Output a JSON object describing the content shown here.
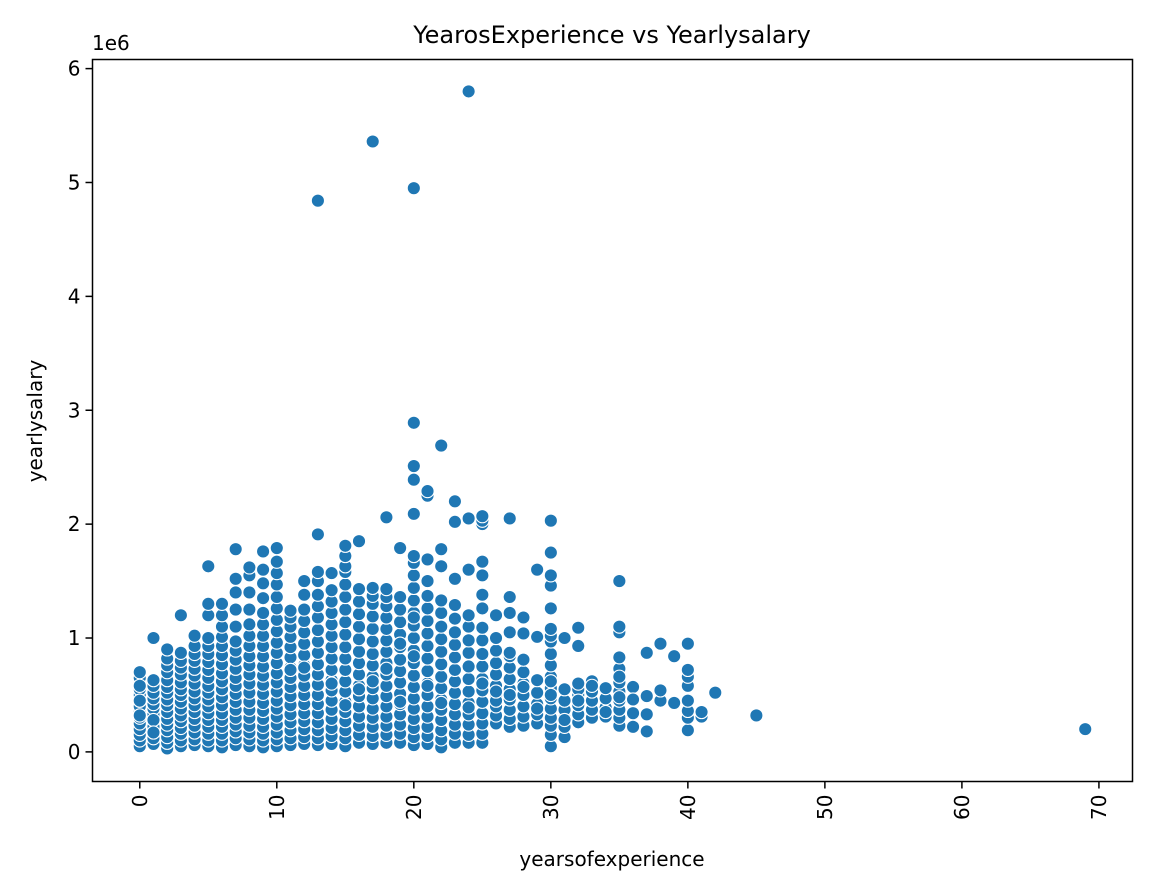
{
  "chart_data": {
    "type": "scatter",
    "title": "YearosExperience vs Yearlysalary",
    "xlabel": "yearsofexperience",
    "ylabel": "yearlysalary",
    "y_multiplier_label": "1e6",
    "xlim": [
      -3.45,
      72.45
    ],
    "ylim": [
      -0.26,
      6.08
    ],
    "x_ticks": [
      0,
      10,
      20,
      30,
      40,
      50,
      60,
      70
    ],
    "y_ticks": [
      0,
      1,
      2,
      3,
      4,
      5,
      6
    ],
    "x_tick_rotation": 90,
    "grid": false,
    "legend": "none",
    "series": [
      {
        "color": "#1f77b4",
        "edge_color": "#ffffff",
        "x": [
          0,
          0,
          0,
          0,
          0,
          0,
          0,
          0,
          0,
          0,
          0,
          0,
          0,
          0,
          0,
          0,
          0,
          1,
          1,
          1,
          1,
          1,
          1,
          1,
          1,
          1,
          1,
          1,
          1,
          1,
          1,
          1,
          2,
          2,
          2,
          2,
          2,
          2,
          2,
          2,
          2,
          2,
          2,
          2,
          2,
          2,
          2,
          2,
          3,
          3,
          3,
          3,
          3,
          3,
          3,
          3,
          3,
          3,
          3,
          3,
          3,
          3,
          3,
          3,
          4,
          4,
          4,
          4,
          4,
          4,
          4,
          4,
          4,
          4,
          4,
          4,
          4,
          4,
          4,
          4,
          5,
          5,
          5,
          5,
          5,
          5,
          5,
          5,
          5,
          5,
          5,
          5,
          5,
          5,
          5,
          5,
          5,
          5,
          5,
          6,
          6,
          6,
          6,
          6,
          6,
          6,
          6,
          6,
          6,
          6,
          6,
          6,
          6,
          6,
          6,
          6,
          6,
          7,
          7,
          7,
          7,
          7,
          7,
          7,
          7,
          7,
          7,
          7,
          7,
          7,
          7,
          7,
          7,
          7,
          7,
          7,
          8,
          8,
          8,
          8,
          8,
          8,
          8,
          8,
          8,
          8,
          8,
          8,
          8,
          8,
          8,
          8,
          8,
          8,
          8,
          9,
          9,
          9,
          9,
          9,
          9,
          9,
          9,
          9,
          9,
          9,
          9,
          9,
          9,
          9,
          9,
          9,
          9,
          9,
          9,
          10,
          10,
          10,
          10,
          10,
          10,
          10,
          10,
          10,
          10,
          10,
          10,
          10,
          10,
          10,
          10,
          10,
          10,
          10,
          10,
          10,
          11,
          11,
          11,
          11,
          11,
          11,
          11,
          11,
          11,
          11,
          11,
          11,
          11,
          11,
          11,
          11,
          11,
          12,
          12,
          12,
          12,
          12,
          12,
          12,
          12,
          12,
          12,
          12,
          12,
          12,
          12,
          12,
          12,
          12,
          12,
          13,
          13,
          13,
          13,
          13,
          13,
          13,
          13,
          13,
          13,
          13,
          13,
          13,
          13,
          13,
          13,
          13,
          13,
          13,
          13,
          14,
          14,
          14,
          14,
          14,
          14,
          14,
          14,
          14,
          14,
          14,
          14,
          14,
          14,
          14,
          14,
          14,
          14,
          15,
          15,
          15,
          15,
          15,
          15,
          15,
          15,
          15,
          15,
          15,
          15,
          15,
          15,
          15,
          15,
          15,
          15,
          15,
          15,
          15,
          16,
          16,
          16,
          16,
          16,
          16,
          16,
          16,
          16,
          16,
          16,
          16,
          16,
          16,
          16,
          16,
          16,
          17,
          17,
          17,
          17,
          17,
          17,
          17,
          17,
          17,
          17,
          17,
          17,
          17,
          17,
          17,
          17,
          17,
          17,
          18,
          18,
          18,
          18,
          18,
          18,
          18,
          18,
          18,
          18,
          18,
          18,
          18,
          18,
          18,
          18,
          18,
          18,
          19,
          19,
          19,
          19,
          19,
          19,
          19,
          19,
          19,
          19,
          19,
          19,
          19,
          19,
          19,
          19,
          19,
          20,
          20,
          20,
          20,
          20,
          20,
          20,
          20,
          20,
          20,
          20,
          20,
          20,
          20,
          20,
          20,
          20,
          20,
          20,
          20,
          20,
          20,
          20,
          20,
          20,
          21,
          21,
          21,
          21,
          21,
          21,
          21,
          21,
          21,
          21,
          21,
          21,
          21,
          21,
          21,
          21,
          21,
          21,
          21,
          22,
          22,
          22,
          22,
          22,
          22,
          22,
          22,
          22,
          22,
          22,
          22,
          22,
          22,
          22,
          22,
          22,
          22,
          23,
          23,
          23,
          23,
          23,
          23,
          23,
          23,
          23,
          23,
          23,
          23,
          23,
          23,
          23,
          23,
          24,
          24,
          24,
          24,
          24,
          24,
          24,
          24,
          24,
          24,
          24,
          24,
          24,
          24,
          24,
          24,
          25,
          25,
          25,
          25,
          25,
          25,
          25,
          25,
          25,
          25,
          25,
          25,
          25,
          25,
          25,
          25,
          25,
          25,
          25,
          26,
          26,
          26,
          26,
          26,
          26,
          26,
          26,
          26,
          26,
          26,
          26,
          27,
          27,
          27,
          27,
          27,
          27,
          27,
          27,
          27,
          27,
          27,
          27,
          27,
          27,
          28,
          28,
          28,
          28,
          28,
          28,
          28,
          28,
          28,
          28,
          29,
          29,
          29,
          29,
          29,
          29,
          29,
          29,
          30,
          30,
          30,
          30,
          30,
          30,
          30,
          30,
          30,
          30,
          30,
          30,
          30,
          30,
          30,
          30,
          30,
          30,
          30,
          30,
          31,
          31,
          31,
          31,
          31,
          31,
          31,
          31,
          32,
          32,
          32,
          32,
          32,
          32,
          32,
          32,
          32,
          33,
          33,
          33,
          33,
          33,
          33,
          34,
          34,
          34,
          34,
          34,
          35,
          35,
          35,
          35,
          35,
          35,
          35,
          35,
          35,
          35,
          35,
          35,
          35,
          36,
          36,
          36,
          36,
          37,
          37,
          37,
          37,
          38,
          38,
          38,
          39,
          39,
          40,
          40,
          40,
          40,
          40,
          40,
          40,
          40,
          41,
          41,
          42,
          45,
          69
        ],
        "y": [
          0.05,
          0.1,
          0.15,
          0.2,
          0.25,
          0.3,
          0.35,
          0.4,
          0.45,
          0.5,
          0.55,
          0.6,
          0.65,
          0.7,
          0.32,
          0.45,
          0.58,
          0.07,
          0.12,
          0.18,
          0.22,
          0.28,
          0.33,
          0.38,
          0.42,
          0.47,
          0.52,
          0.58,
          0.63,
          0.28,
          0.17,
          1.0,
          0.03,
          0.08,
          0.13,
          0.19,
          0.24,
          0.29,
          0.35,
          0.41,
          0.46,
          0.52,
          0.57,
          0.63,
          0.7,
          0.76,
          0.82,
          0.9,
          0.05,
          0.1,
          0.16,
          0.21,
          0.27,
          0.32,
          0.38,
          0.44,
          0.5,
          0.55,
          0.61,
          0.68,
          0.74,
          0.8,
          0.87,
          1.2,
          0.06,
          0.11,
          0.17,
          0.23,
          0.29,
          0.35,
          0.41,
          0.47,
          0.53,
          0.6,
          0.67,
          0.73,
          0.8,
          0.86,
          0.93,
          1.02,
          0.05,
          0.1,
          0.16,
          0.22,
          0.28,
          0.34,
          0.4,
          0.46,
          0.52,
          0.58,
          0.65,
          0.72,
          0.79,
          0.86,
          0.93,
          1.0,
          1.2,
          1.3,
          1.63,
          0.04,
          0.1,
          0.16,
          0.22,
          0.28,
          0.34,
          0.41,
          0.48,
          0.55,
          0.62,
          0.69,
          0.77,
          0.85,
          0.93,
          1.01,
          1.1,
          1.2,
          1.3,
          0.06,
          0.12,
          0.18,
          0.24,
          0.3,
          0.37,
          0.44,
          0.51,
          0.58,
          0.65,
          0.73,
          0.81,
          0.89,
          0.97,
          1.1,
          1.25,
          1.4,
          1.52,
          1.78,
          0.05,
          0.11,
          0.17,
          0.23,
          0.3,
          0.37,
          0.44,
          0.52,
          0.6,
          0.68,
          0.76,
          0.84,
          0.93,
          1.02,
          1.12,
          1.25,
          1.4,
          1.55,
          1.62,
          0.04,
          0.1,
          0.16,
          0.22,
          0.29,
          0.36,
          0.43,
          0.51,
          0.59,
          0.67,
          0.75,
          0.84,
          0.93,
          1.02,
          1.12,
          1.22,
          1.35,
          1.48,
          1.6,
          1.76,
          0.05,
          0.11,
          0.17,
          0.24,
          0.31,
          0.38,
          0.45,
          0.53,
          0.61,
          0.69,
          0.78,
          0.87,
          0.96,
          1.06,
          1.16,
          1.26,
          1.36,
          1.47,
          1.57,
          1.67,
          1.79,
          0.06,
          0.12,
          0.19,
          0.26,
          0.33,
          0.41,
          0.49,
          0.57,
          0.65,
          0.74,
          0.83,
          0.92,
          1.01,
          1.1,
          1.18,
          1.24,
          0.72,
          0.07,
          0.13,
          0.2,
          0.27,
          0.34,
          0.42,
          0.5,
          0.58,
          0.67,
          0.76,
          0.85,
          0.95,
          1.05,
          1.15,
          1.25,
          1.38,
          1.5,
          0.74,
          0.06,
          0.12,
          0.19,
          0.26,
          0.34,
          0.42,
          0.5,
          0.59,
          0.68,
          0.77,
          0.87,
          0.97,
          1.07,
          1.18,
          1.28,
          1.38,
          1.5,
          1.58,
          1.91,
          4.84,
          0.07,
          0.14,
          0.21,
          0.29,
          0.37,
          0.45,
          0.54,
          0.63,
          0.72,
          0.82,
          0.92,
          1.02,
          1.12,
          1.22,
          1.32,
          1.42,
          1.57,
          0.6,
          0.05,
          0.12,
          0.19,
          0.27,
          0.35,
          0.44,
          0.53,
          0.62,
          0.72,
          0.82,
          0.92,
          1.03,
          1.14,
          1.25,
          1.36,
          1.47,
          1.58,
          1.63,
          1.72,
          1.81,
          0.41,
          0.08,
          0.15,
          0.23,
          0.31,
          0.4,
          0.49,
          0.58,
          0.68,
          0.78,
          0.88,
          0.99,
          1.1,
          1.21,
          1.32,
          1.43,
          1.85,
          0.55,
          0.07,
          0.14,
          0.22,
          0.3,
          0.38,
          0.47,
          0.56,
          0.66,
          0.76,
          0.86,
          0.97,
          1.08,
          1.19,
          1.3,
          1.37,
          1.44,
          0.62,
          5.36,
          0.08,
          0.15,
          0.23,
          0.31,
          0.4,
          0.49,
          0.58,
          0.68,
          0.78,
          0.88,
          0.98,
          1.08,
          1.18,
          1.28,
          1.36,
          1.43,
          2.06,
          0.73,
          0.08,
          0.16,
          0.24,
          0.33,
          0.42,
          0.51,
          0.61,
          0.71,
          0.81,
          0.92,
          1.03,
          1.14,
          1.25,
          1.36,
          1.79,
          0.95,
          0.44,
          0.06,
          0.13,
          0.21,
          0.29,
          0.38,
          0.47,
          0.57,
          0.67,
          0.78,
          0.89,
          1.0,
          1.11,
          1.22,
          1.33,
          1.44,
          1.55,
          1.66,
          1.72,
          2.09,
          2.39,
          2.51,
          2.89,
          4.95,
          1.18,
          0.84,
          0.07,
          0.14,
          0.22,
          0.31,
          0.4,
          0.5,
          0.6,
          0.71,
          0.82,
          0.93,
          1.04,
          1.15,
          1.26,
          1.37,
          1.5,
          1.69,
          2.25,
          2.29,
          0.58,
          0.04,
          0.11,
          0.19,
          0.28,
          0.37,
          0.46,
          0.56,
          0.66,
          0.77,
          0.88,
          0.99,
          1.1,
          1.22,
          1.33,
          1.63,
          1.78,
          2.69,
          0.43,
          0.08,
          0.16,
          0.24,
          0.33,
          0.42,
          0.52,
          0.62,
          0.72,
          0.83,
          0.94,
          1.05,
          1.17,
          1.29,
          1.52,
          2.02,
          2.2,
          0.08,
          0.15,
          0.24,
          0.33,
          0.43,
          0.53,
          0.64,
          0.75,
          0.87,
          0.98,
          1.1,
          1.2,
          1.6,
          2.05,
          0.39,
          5.8,
          0.08,
          0.16,
          0.25,
          0.34,
          0.44,
          0.54,
          0.64,
          0.75,
          0.86,
          0.98,
          1.09,
          1.26,
          1.38,
          1.55,
          1.67,
          2.0,
          2.03,
          2.07,
          0.6,
          0.25,
          0.32,
          0.4,
          0.49,
          0.58,
          0.68,
          0.78,
          0.89,
          1.0,
          1.2,
          0.45,
          0.53,
          0.22,
          0.29,
          0.37,
          0.46,
          0.55,
          0.64,
          0.74,
          0.84,
          0.87,
          1.05,
          1.22,
          1.36,
          2.05,
          0.5,
          0.23,
          0.31,
          0.4,
          0.5,
          0.6,
          0.7,
          0.81,
          1.04,
          1.18,
          0.57,
          0.25,
          0.33,
          0.42,
          0.52,
          0.63,
          1.01,
          1.6,
          0.38,
          0.05,
          0.15,
          0.23,
          0.3,
          0.38,
          0.47,
          0.56,
          0.66,
          0.76,
          0.86,
          0.97,
          1.02,
          1.08,
          1.26,
          1.46,
          1.55,
          1.75,
          2.03,
          0.62,
          0.5,
          0.13,
          0.22,
          0.3,
          0.37,
          0.45,
          0.55,
          1.0,
          0.28,
          0.26,
          0.33,
          0.41,
          0.5,
          0.55,
          0.6,
          0.93,
          1.09,
          0.45,
          0.3,
          0.37,
          0.45,
          0.53,
          0.62,
          0.58,
          0.31,
          0.39,
          0.47,
          0.56,
          0.35,
          0.23,
          0.3,
          0.37,
          0.45,
          0.53,
          0.61,
          0.73,
          0.83,
          1.05,
          1.1,
          1.5,
          0.66,
          0.48,
          0.22,
          0.34,
          0.57,
          0.46,
          0.18,
          0.33,
          0.49,
          0.87,
          0.45,
          0.54,
          0.95,
          0.43,
          0.84,
          0.19,
          0.3,
          0.36,
          0.45,
          0.58,
          0.66,
          0.72,
          0.95,
          0.31,
          0.35,
          0.52,
          0.32,
          0.2
        ]
      }
    ]
  }
}
